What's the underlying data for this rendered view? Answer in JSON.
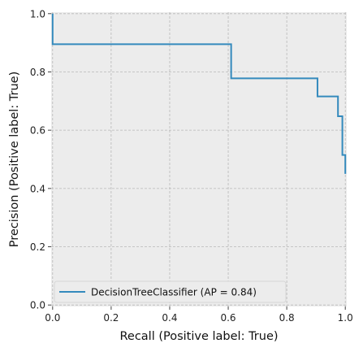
{
  "chart_data": {
    "type": "line",
    "drawstyle": "steps-post",
    "xlabel": "Recall (Positive label: True)",
    "ylabel": "Precision (Positive label: True)",
    "xlim": [
      -0.005,
      1.005
    ],
    "ylim": [
      -0.005,
      1.005
    ],
    "xticks": [
      0.0,
      0.2,
      0.4,
      0.6,
      0.8,
      1.0
    ],
    "xtick_labels": [
      "0.0",
      "0.2",
      "0.4",
      "0.6",
      "0.8",
      "1.0"
    ],
    "yticks": [
      0.0,
      0.2,
      0.4,
      0.6,
      0.8,
      1.0
    ],
    "ytick_labels": [
      "0.0",
      "0.2",
      "0.4",
      "0.6",
      "0.8",
      "1.0"
    ],
    "grid": true,
    "legend_position": "lower-left",
    "background_color": "#ececec",
    "grid_color": "#b8b8b8",
    "series": [
      {
        "name": "DecisionTreeClassifier (AP = 0.84)",
        "color": "#348abd",
        "x": [
          0.0,
          0.0,
          0.61,
          0.61,
          0.905,
          0.905,
          0.975,
          0.975,
          0.99,
          0.99,
          1.0,
          1.0
        ],
        "y": [
          1.0,
          0.895,
          0.895,
          0.778,
          0.778,
          0.716,
          0.716,
          0.648,
          0.648,
          0.515,
          0.515,
          0.45
        ]
      }
    ]
  }
}
